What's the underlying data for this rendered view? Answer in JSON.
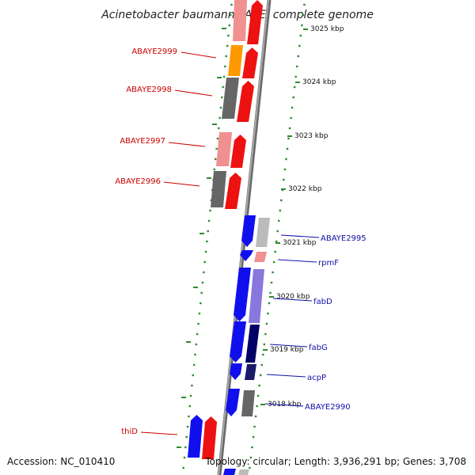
{
  "title": "Acinetobacter baumannii AYE, complete genome",
  "footer": {
    "accession": "Accession: NC_010410",
    "summary": "Topology: circular; Length: 3,936,291 bp; Genes: 3,708"
  },
  "colors": {
    "backbone": "#808080",
    "tick": "#2e8b2e",
    "label_red": "#cc0000",
    "label_blue": "#1010aa"
  },
  "ticks": [
    {
      "label": "3025 kbp"
    },
    {
      "label": "3024 kbp"
    },
    {
      "label": "3023 kbp"
    },
    {
      "label": "3022 kbp"
    },
    {
      "label": "3021 kbp"
    },
    {
      "label": "3020 kbp"
    },
    {
      "label": "3019 kbp"
    },
    {
      "label": "3018 kbp"
    }
  ],
  "genes": [
    {
      "label": "ABAYE2999",
      "strand": "left"
    },
    {
      "label": "ABAYE2998",
      "strand": "left"
    },
    {
      "label": "ABAYE2997",
      "strand": "left"
    },
    {
      "label": "ABAYE2996",
      "strand": "left"
    },
    {
      "label": "ABAYE2995",
      "strand": "right"
    },
    {
      "label": "rpmF",
      "strand": "right"
    },
    {
      "label": "fabD",
      "strand": "right"
    },
    {
      "label": "fabG",
      "strand": "right"
    },
    {
      "label": "acpP",
      "strand": "right"
    },
    {
      "label": "ABAYE2990",
      "strand": "right"
    },
    {
      "label": "thiD",
      "strand": "left"
    }
  ]
}
